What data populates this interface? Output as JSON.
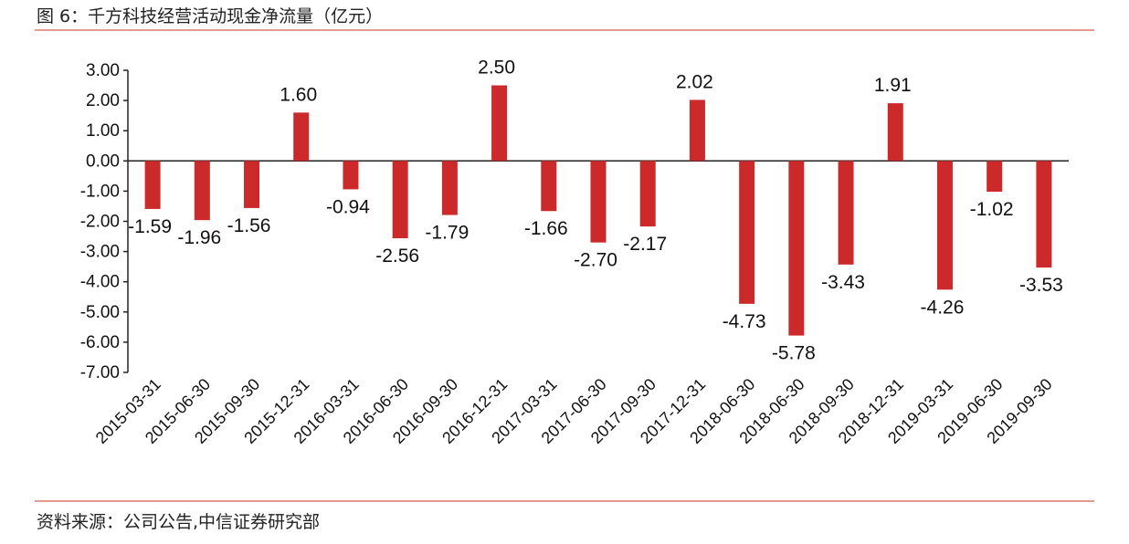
{
  "title": "图 6：千方科技经营活动现金净流量（亿元）",
  "source": "资料来源：公司公告,中信证券研究部",
  "colors": {
    "bar": "#cc2a2a",
    "rule": "#e59a8f",
    "axis": "#222222"
  },
  "chart_data": {
    "type": "bar",
    "title": "千方科技经营活动现金净流量（亿元）",
    "xlabel": "",
    "ylabel": "",
    "ylim": [
      -7,
      3
    ],
    "yticks": [
      3,
      2,
      1,
      0,
      -1,
      -2,
      -3,
      -4,
      -5,
      -6,
      -7
    ],
    "ytick_labels": [
      "3.00",
      "2.00",
      "1.00",
      "0.00",
      "-1.00",
      "-2.00",
      "-3.00",
      "-4.00",
      "-5.00",
      "-6.00",
      "-7.00"
    ],
    "grid": false,
    "legend": "none",
    "categories": [
      "2015-03-31",
      "2015-06-30",
      "2015-09-30",
      "2015-12-31",
      "2016-03-31",
      "2016-06-30",
      "2016-09-30",
      "2016-12-31",
      "2017-03-31",
      "2017-06-30",
      "2017-09-30",
      "2017-12-31",
      "2018-06-30",
      "2018-06-30",
      "2018-09-30",
      "2018-12-31",
      "2019-03-31",
      "2019-06-30",
      "2019-09-30"
    ],
    "values": [
      -1.59,
      -1.96,
      -1.56,
      1.6,
      -0.94,
      -2.56,
      -1.79,
      2.5,
      -1.66,
      -2.7,
      -2.17,
      2.02,
      -4.73,
      -5.78,
      -3.43,
      1.91,
      -4.26,
      -1.02,
      -3.53
    ],
    "value_labels": [
      "-1.59",
      "-1.96",
      "-1.56",
      "1.60",
      "-0.94",
      "-2.56",
      "-1.79",
      "2.50",
      "-1.66",
      "-2.70",
      "-2.17",
      "2.02",
      "-4.73",
      "-5.78",
      "-3.43",
      "1.91",
      "-4.26",
      "-1.02",
      "-3.53"
    ]
  }
}
